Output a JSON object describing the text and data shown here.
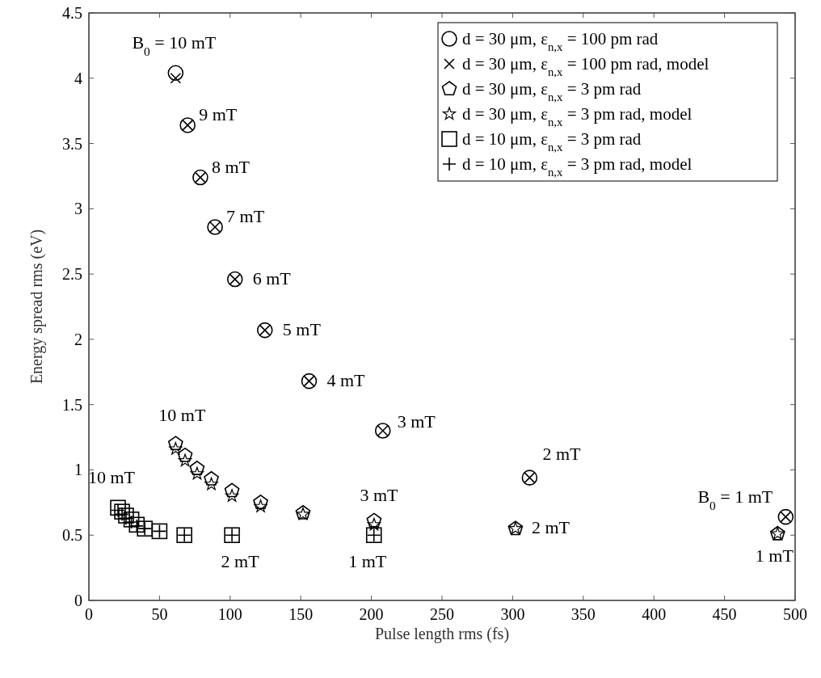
{
  "chart_data": {
    "type": "scatter",
    "xlabel": "Pulse length rms (fs)",
    "ylabel": "Energy spread rms (eV)",
    "xlim": [
      0,
      500
    ],
    "xticks": [
      0,
      50,
      100,
      150,
      200,
      250,
      300,
      350,
      400,
      450,
      500
    ],
    "ylim": [
      0,
      4.5
    ],
    "yticks": [
      0,
      0.5,
      1,
      1.5,
      2,
      2.5,
      3,
      3.5,
      4,
      4.5
    ],
    "grid": false,
    "legend": "top right",
    "series": [
      {
        "name": "d = 30 μm, ε$_{n,x}$ = 100 pm rad",
        "color": "#000000",
        "marker": "circle",
        "x": [
          61.4,
          69.9,
          78.9,
          89.3,
          103.4,
          124.6,
          155.9,
          208.1,
          312,
          493.3
        ],
        "values": [
          4.04,
          3.64,
          3.24,
          2.86,
          2.46,
          2.07,
          1.68,
          1.3,
          0.94,
          0.64
        ]
      },
      {
        "name": "d = 30 μm, ε$_{n,x}$ = 100 pm rad, model",
        "color": "#000000",
        "marker": "cross",
        "x": [
          61.4,
          69.9,
          78.9,
          89.3,
          103.4,
          124.6,
          155.9,
          208.1,
          312,
          493.3
        ],
        "values": [
          4.0,
          3.64,
          3.24,
          2.86,
          2.46,
          2.07,
          1.68,
          1.3,
          0.94,
          0.64
        ]
      },
      {
        "name": "d = 30 μm, ε$_{n,x}$ = 3 pm rad",
        "color": "#000000",
        "x": [
          61.4,
          68.1,
          76.6,
          86.7,
          101.3,
          121.6,
          151.6,
          201.9,
          302,
          487.6
        ],
        "values": [
          1.2,
          1.11,
          1.01,
          0.93,
          0.84,
          0.75,
          0.67,
          0.61,
          0.55,
          0.51
        ]
      },
      {
        "name": "d = 30 μm, ε$_{n,x}$ = 3 pm rad, model",
        "color": "#000000",
        "marker": "star",
        "x": [
          61.4,
          68.1,
          76.6,
          86.7,
          101.3,
          121.6,
          151.6,
          201.9,
          302,
          487.6
        ],
        "values": [
          1.16,
          1.07,
          0.97,
          0.89,
          0.8,
          0.72,
          0.66,
          0.58,
          0.55,
          0.51
        ]
      },
      {
        "name": "d = 10 μm, ε$_{n,x}$ = 3 pm rad",
        "color": "#000000",
        "marker": "square",
        "x": [
          20.6,
          23.5,
          26.3,
          30.1,
          33.9,
          39.6,
          50.0,
          67.6,
          101.3,
          201.8
        ],
        "values": [
          0.71,
          0.68,
          0.65,
          0.62,
          0.58,
          0.55,
          0.53,
          0.5,
          0.5,
          0.5
        ]
      },
      {
        "name": "d = 10 μm, ε$_{n,x}$ = 3 pm rad, model",
        "color": "#000000",
        "marker": "plus",
        "x": [
          20.6,
          23.5,
          26.3,
          30.1,
          33.9,
          39.6,
          50.0,
          67.6,
          101.3,
          201.8
        ],
        "values": [
          0.69,
          0.66,
          0.63,
          0.6,
          0.57,
          0.55,
          0.53,
          0.5,
          0.5,
          0.5
        ]
      }
    ],
    "annotations": [
      {
        "text": "B$_{0}$ = 10 mT",
        "x": 61.4,
        "y": 4.04
      },
      {
        "text": "9 mT",
        "x": 69.9,
        "y": 3.64
      },
      {
        "text": "8 mT",
        "x": 78.9,
        "y": 3.24
      },
      {
        "text": "7 mT",
        "x": 89.3,
        "y": 2.86
      },
      {
        "text": "6 mT",
        "x": 103.4,
        "y": 2.46
      },
      {
        "text": "5 mT",
        "x": 124.6,
        "y": 2.07
      },
      {
        "text": "4 mT",
        "x": 155.9,
        "y": 1.68
      },
      {
        "text": "3 mT",
        "x": 208.1,
        "y": 1.3
      },
      {
        "text": "2 mT",
        "x": 312,
        "y": 0.94
      },
      {
        "text": "B$_{0}$ = 1 mT",
        "x": 493.3,
        "y": 0.64
      },
      {
        "text": "10 mT",
        "x": 61.4,
        "y": 1.2
      },
      {
        "text": "3 mT",
        "x": 201.9,
        "y": 0.61
      },
      {
        "text": "2 mT",
        "x": 302,
        "y": 0.55
      },
      {
        "text": "1 mT",
        "x": 487.6,
        "y": 0.51
      },
      {
        "text": "10 mT",
        "x": 20.6,
        "y": 0.71
      },
      {
        "text": "2 mT",
        "x": 101.3,
        "y": 0.5
      },
      {
        "text": "1 mT",
        "x": 201.8,
        "y": 0.5
      }
    ]
  }
}
